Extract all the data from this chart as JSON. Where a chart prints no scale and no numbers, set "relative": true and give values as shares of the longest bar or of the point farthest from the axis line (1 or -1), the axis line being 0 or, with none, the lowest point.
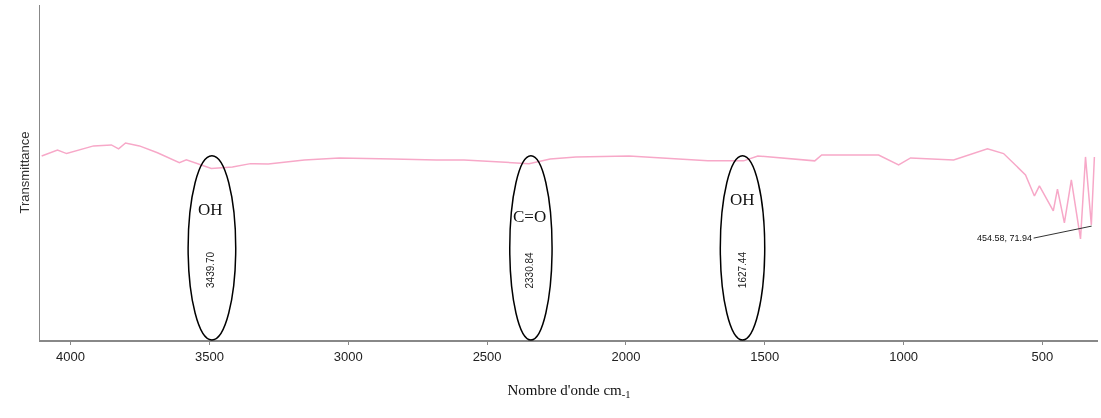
{
  "chart_data": {
    "type": "line",
    "relative": true,
    "xlabel": "Nombre d'onde cm$_{-1}$",
    "ylabel": "Transmittance",
    "x": [
      4104,
      4047,
      4014,
      3917,
      3853,
      3827,
      3802,
      3752,
      3687,
      3608,
      3583,
      3493,
      3417,
      3352,
      3288,
      3158,
      3032,
      2838,
      2683,
      2583,
      2349,
      2273,
      2180,
      1989,
      1705,
      1576,
      1525,
      1320,
      1295,
      1090,
      1018,
      975,
      820,
      698,
      640,
      561,
      529,
      511,
      461,
      446,
      421,
      396,
      363,
      345,
      324,
      313
    ],
    "series": [
      {
        "color": "#f7a8c8",
        "values": [
          0.934,
          0.964,
          0.946,
          0.985,
          0.99,
          0.97,
          1.0,
          0.985,
          0.95,
          0.9,
          0.914,
          0.87,
          0.878,
          0.895,
          0.893,
          0.914,
          0.924,
          0.919,
          0.914,
          0.914,
          0.895,
          0.919,
          0.929,
          0.934,
          0.909,
          0.909,
          0.934,
          0.909,
          0.939,
          0.939,
          0.888,
          0.924,
          0.914,
          0.97,
          0.946,
          0.838,
          0.731,
          0.782,
          0.655,
          0.766,
          0.594,
          0.812,
          0.513,
          0.929,
          0.584,
          0.929
        ]
      }
    ],
    "xlim": [
      4110,
      300
    ],
    "xticks": [
      4000,
      3500,
      3000,
      2500,
      2000,
      1500,
      1000,
      500
    ],
    "grid": false,
    "marker": "none",
    "line_style": "solid",
    "annotations": [
      "OH",
      "3439.70",
      "C=O",
      "2330.84",
      "OH",
      "1627.44",
      "454.58, 71.94"
    ]
  }
}
